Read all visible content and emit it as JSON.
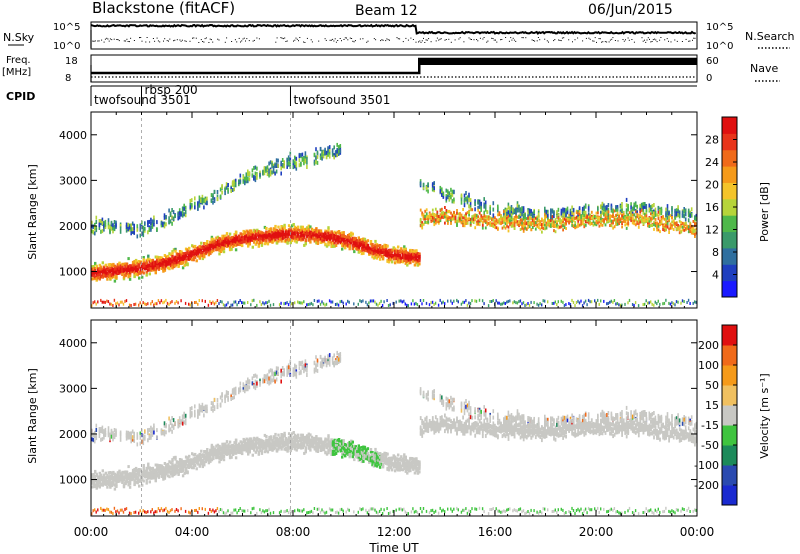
{
  "header": {
    "station": "Blackstone (fitACF)",
    "beam": "Beam 12",
    "date": "06/Jun/2015"
  },
  "top_panels": {
    "nsky_label": "N.Sky",
    "nsearch_label": "N.Search",
    "nsky_ticks": [
      "10^5",
      "10^0"
    ],
    "freq_label": "Freq.",
    "freq_unit": "[MHz]",
    "freq_ticks": [
      18,
      8
    ],
    "nave_label": "Nave",
    "nave_ticks": [
      60,
      0
    ],
    "cpid_label": "CPID",
    "cpid_segments": [
      {
        "label": "twofsound 3501",
        "start_hour": 0
      },
      {
        "label": "rbsp 200",
        "start_hour": 2.0
      },
      {
        "label": "twofsound 3501",
        "start_hour": 7.9
      }
    ]
  },
  "colors": {
    "power_scale": [
      "#1a1aff",
      "#1f3fbf",
      "#2f6f9f",
      "#3a9a6a",
      "#4fb84a",
      "#b6d43a",
      "#f4c42a",
      "#f59a1a",
      "#f06a1a",
      "#e8341a",
      "#e01010"
    ],
    "velocity_scale": [
      "#1a2ad0",
      "#2a4ab0",
      "#1c8a5a",
      "#3fc43f",
      "#c8c8c4",
      "#f0c060",
      "#f59a1a",
      "#f06a1a",
      "#e01010"
    ]
  },
  "chart_data": [
    {
      "type": "heatmap",
      "name": "power",
      "ylabel": "Slant Range [km]",
      "yticks": [
        1000,
        2000,
        3000,
        4000
      ],
      "ylim": [
        200,
        4500
      ],
      "xlim": [
        0,
        24
      ],
      "colorbar": {
        "label": "Power [dB]",
        "ticks": [
          4,
          8,
          12,
          16,
          20,
          24,
          28
        ],
        "range": [
          0,
          32
        ]
      }
    },
    {
      "type": "heatmap",
      "name": "velocity",
      "ylabel": "Slant Range [km]",
      "yticks": [
        1000,
        2000,
        3000,
        4000
      ],
      "ylim": [
        200,
        4500
      ],
      "xlim": [
        0,
        24
      ],
      "xlabel": "Time UT",
      "xticks": [
        "00:00",
        "04:00",
        "08:00",
        "12:00",
        "16:00",
        "20:00",
        "00:00"
      ],
      "colorbar": {
        "label": "Velocity [m s⁻¹]",
        "ticks": [
          200,
          100,
          50,
          15,
          -15,
          -50,
          -100,
          -200
        ]
      }
    }
  ],
  "scatter_tracks": {
    "hours": [
      0,
      1,
      2,
      3,
      4,
      5,
      6,
      7,
      7.9,
      9,
      10,
      11,
      12,
      13,
      14,
      16,
      18,
      20,
      22,
      24
    ],
    "main_band_km": [
      950,
      1020,
      1080,
      1200,
      1380,
      1600,
      1720,
      1780,
      1820,
      1780,
      1700,
      1500,
      1350,
      1300,
      null,
      null,
      null,
      null,
      null,
      null
    ],
    "upper_band_km": [
      2000,
      1950,
      1950,
      2150,
      2400,
      2700,
      3050,
      3250,
      3400,
      3550,
      3700,
      null,
      null,
      2950,
      2700,
      2350,
      2250,
      2350,
      2400,
      2200
    ],
    "late_band_km": [
      null,
      null,
      null,
      null,
      null,
      null,
      null,
      null,
      null,
      null,
      null,
      null,
      null,
      2150,
      2200,
      2100,
      2050,
      2150,
      2150,
      1900
    ]
  }
}
